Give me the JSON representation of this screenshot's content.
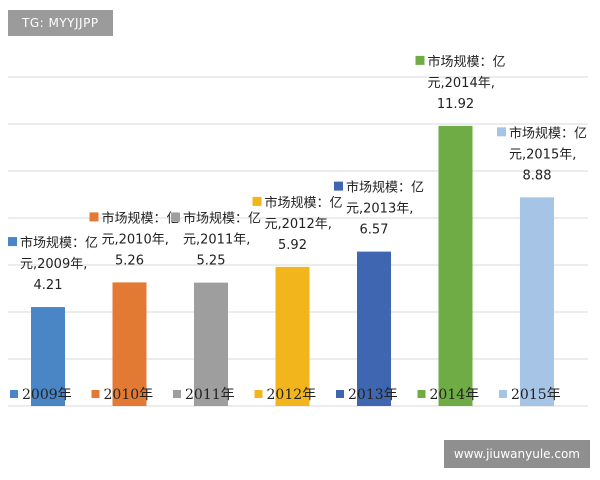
{
  "watermarks": {
    "top_left": "TG: MYYJJPP",
    "bottom_right": "www.jiuwanyule.com"
  },
  "chart_data": {
    "type": "bar",
    "categories": [
      "2009年",
      "2010年",
      "2011年",
      "2012年",
      "2013年",
      "2014年",
      "2015年"
    ],
    "values": [
      4.21,
      5.26,
      5.25,
      5.92,
      6.57,
      11.92,
      8.88
    ],
    "series_name": "市场规模：亿元",
    "colors": [
      "#4a86c5",
      "#e27a34",
      "#9e9e9e",
      "#f2b51c",
      "#3f66b0",
      "#6fac46",
      "#a6c5e6"
    ],
    "data_labels": [
      [
        "市场规模：亿",
        "元,2009年,",
        "4.21"
      ],
      [
        "市场规模：亿",
        "元,2010年,",
        "5.26"
      ],
      [
        "市场规模：亿",
        "元,2011年,",
        "5.25"
      ],
      [
        "市场规模：亿",
        "元,2012年,",
        "5.92"
      ],
      [
        "市场规模：亿",
        "元,2013年,",
        "6.57"
      ],
      [
        "市场规模：亿",
        "元,2014年,",
        "11.92"
      ],
      [
        "市场规模：亿",
        "元,2015年,",
        "8.88"
      ]
    ],
    "ylim": [
      0,
      13
    ],
    "grid": true,
    "legend": "bottom"
  }
}
